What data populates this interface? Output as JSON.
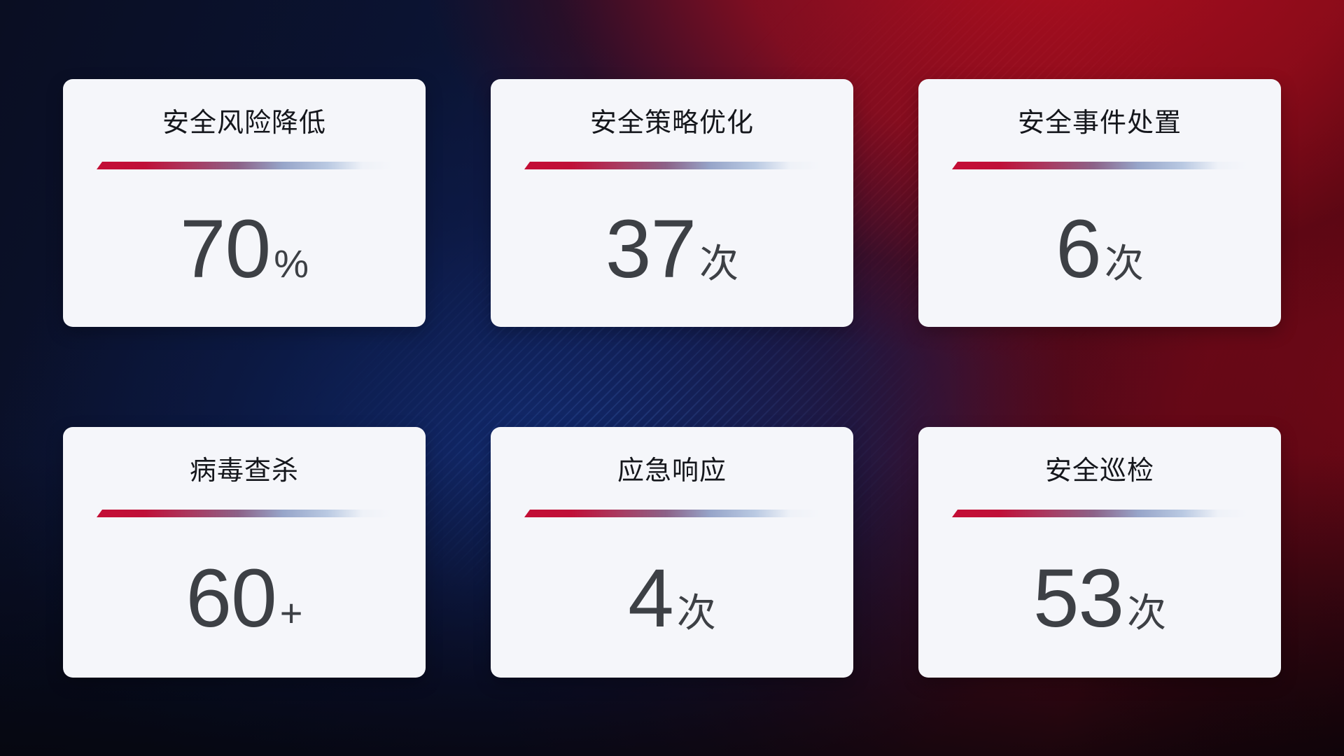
{
  "theme": {
    "card_background": "#f5f6fa",
    "title_color": "#15171c",
    "number_color": "#3d4045",
    "divider_red": "#c30e35",
    "divider_blue": "#b9c9e2",
    "background_accent_red": "#a00e1e",
    "background_accent_blue": "#112a6c"
  },
  "cards": [
    {
      "title": "安全风险降低",
      "value": "70",
      "unit": "%"
    },
    {
      "title": "安全策略优化",
      "value": "37",
      "unit": "次"
    },
    {
      "title": "安全事件处置",
      "value": "6",
      "unit": "次"
    },
    {
      "title": "病毒查杀",
      "value": "60",
      "unit": "+"
    },
    {
      "title": "应急响应",
      "value": "4",
      "unit": "次"
    },
    {
      "title": "安全巡检",
      "value": "53",
      "unit": "次"
    }
  ]
}
